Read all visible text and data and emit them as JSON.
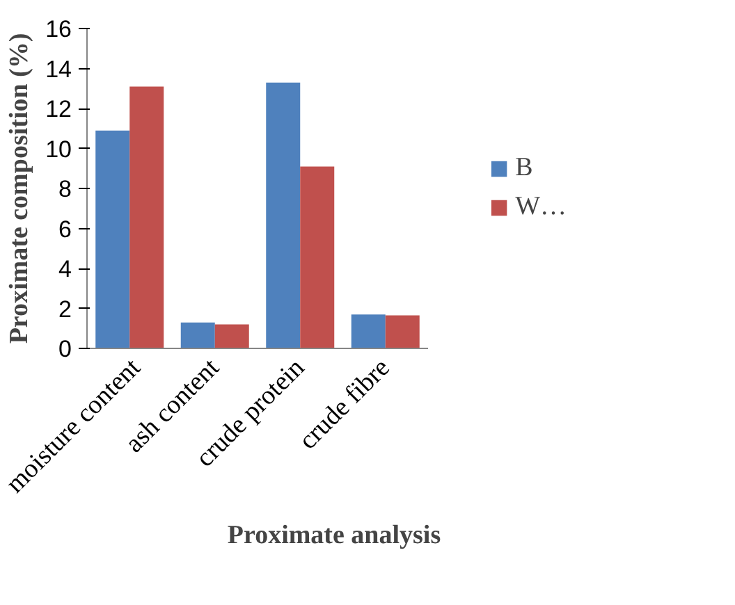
{
  "chart_data": {
    "type": "bar",
    "xlabel": "Proximate analysis",
    "ylabel": "Proximate composition (%)",
    "categories": [
      "moisture content",
      "ash content",
      "crude protein",
      "crude fibre"
    ],
    "series": [
      {
        "name": "B",
        "color": "#4f81bd",
        "values": [
          10.9,
          1.3,
          13.3,
          1.7
        ]
      },
      {
        "name": "W…",
        "color": "#c0504d",
        "values": [
          13.1,
          1.2,
          9.1,
          1.65
        ]
      }
    ],
    "ylim": [
      0,
      16
    ],
    "yticks": [
      0,
      2,
      4,
      6,
      8,
      10,
      12,
      14,
      16
    ],
    "grid": false,
    "legend": "right"
  }
}
